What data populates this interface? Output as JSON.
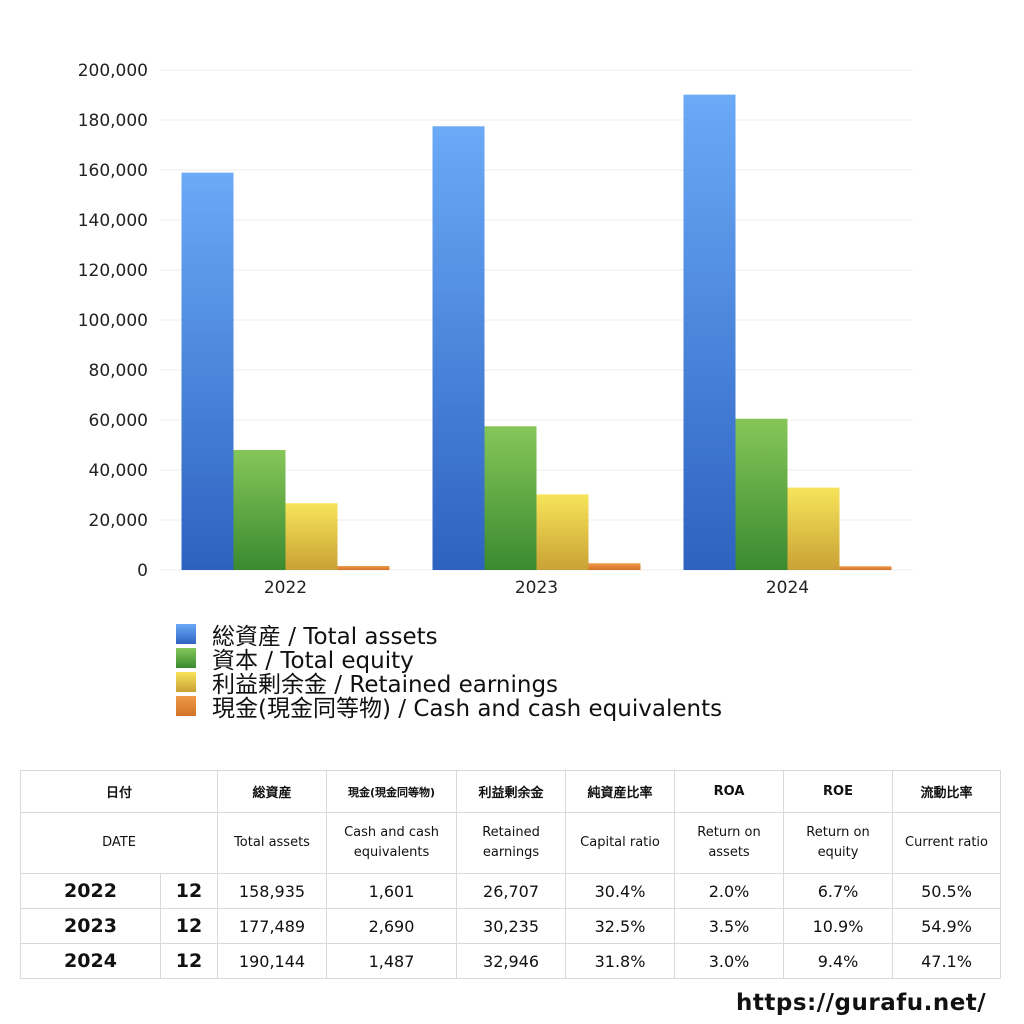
{
  "chart_data": {
    "type": "bar",
    "categories": [
      "2022",
      "2023",
      "2024"
    ],
    "series": [
      {
        "name": "総資産 / Total assets",
        "values": [
          158935,
          177489,
          190144
        ],
        "color": "#3f7fd8"
      },
      {
        "name": "資本 / Total equity",
        "values": [
          48000,
          57500,
          60500
        ],
        "color": "#4e9f3d"
      },
      {
        "name": "利益剰余金 / Retained earnings",
        "values": [
          26707,
          30235,
          32946
        ],
        "color": "#e4c53a"
      },
      {
        "name": "現金(現金同等物) / Cash and cash equivalents",
        "values": [
          1601,
          2690,
          1487
        ],
        "color": "#e0802f"
      }
    ],
    "yticks": [
      "0",
      "20,000",
      "40,000",
      "60,000",
      "80,000",
      "100,000",
      "120,000",
      "140,000",
      "160,000",
      "180,000",
      "200,000"
    ],
    "ylim": [
      0,
      200000
    ],
    "grid": true,
    "legend_position": "bottom"
  },
  "table": {
    "header_jp": [
      "日付",
      "総資産",
      "現金(現金同等物)",
      "利益剰余金",
      "純資産比率",
      "ROA",
      "ROE",
      "流動比率"
    ],
    "header_en": [
      "DATE",
      "Total assets",
      "Cash and cash equivalents",
      "Retained earnings",
      "Capital ratio",
      "Return on assets",
      "Return on equity",
      "Current ratio"
    ],
    "rows": [
      {
        "year": "2022",
        "month": "12",
        "total_assets": "158,935",
        "cash": "1,601",
        "retained": "26,707",
        "capital_ratio": "30.4%",
        "roa": "2.0%",
        "roe": "6.7%",
        "current_ratio": "50.5%"
      },
      {
        "year": "2023",
        "month": "12",
        "total_assets": "177,489",
        "cash": "2,690",
        "retained": "30,235",
        "capital_ratio": "32.5%",
        "roa": "3.5%",
        "roe": "10.9%",
        "current_ratio": "54.9%"
      },
      {
        "year": "2024",
        "month": "12",
        "total_assets": "190,144",
        "cash": "1,487",
        "retained": "32,946",
        "capital_ratio": "31.8%",
        "roa": "3.0%",
        "roe": "9.4%",
        "current_ratio": "47.1%"
      }
    ]
  },
  "footer": {
    "url": "https://gurafu.net/"
  }
}
